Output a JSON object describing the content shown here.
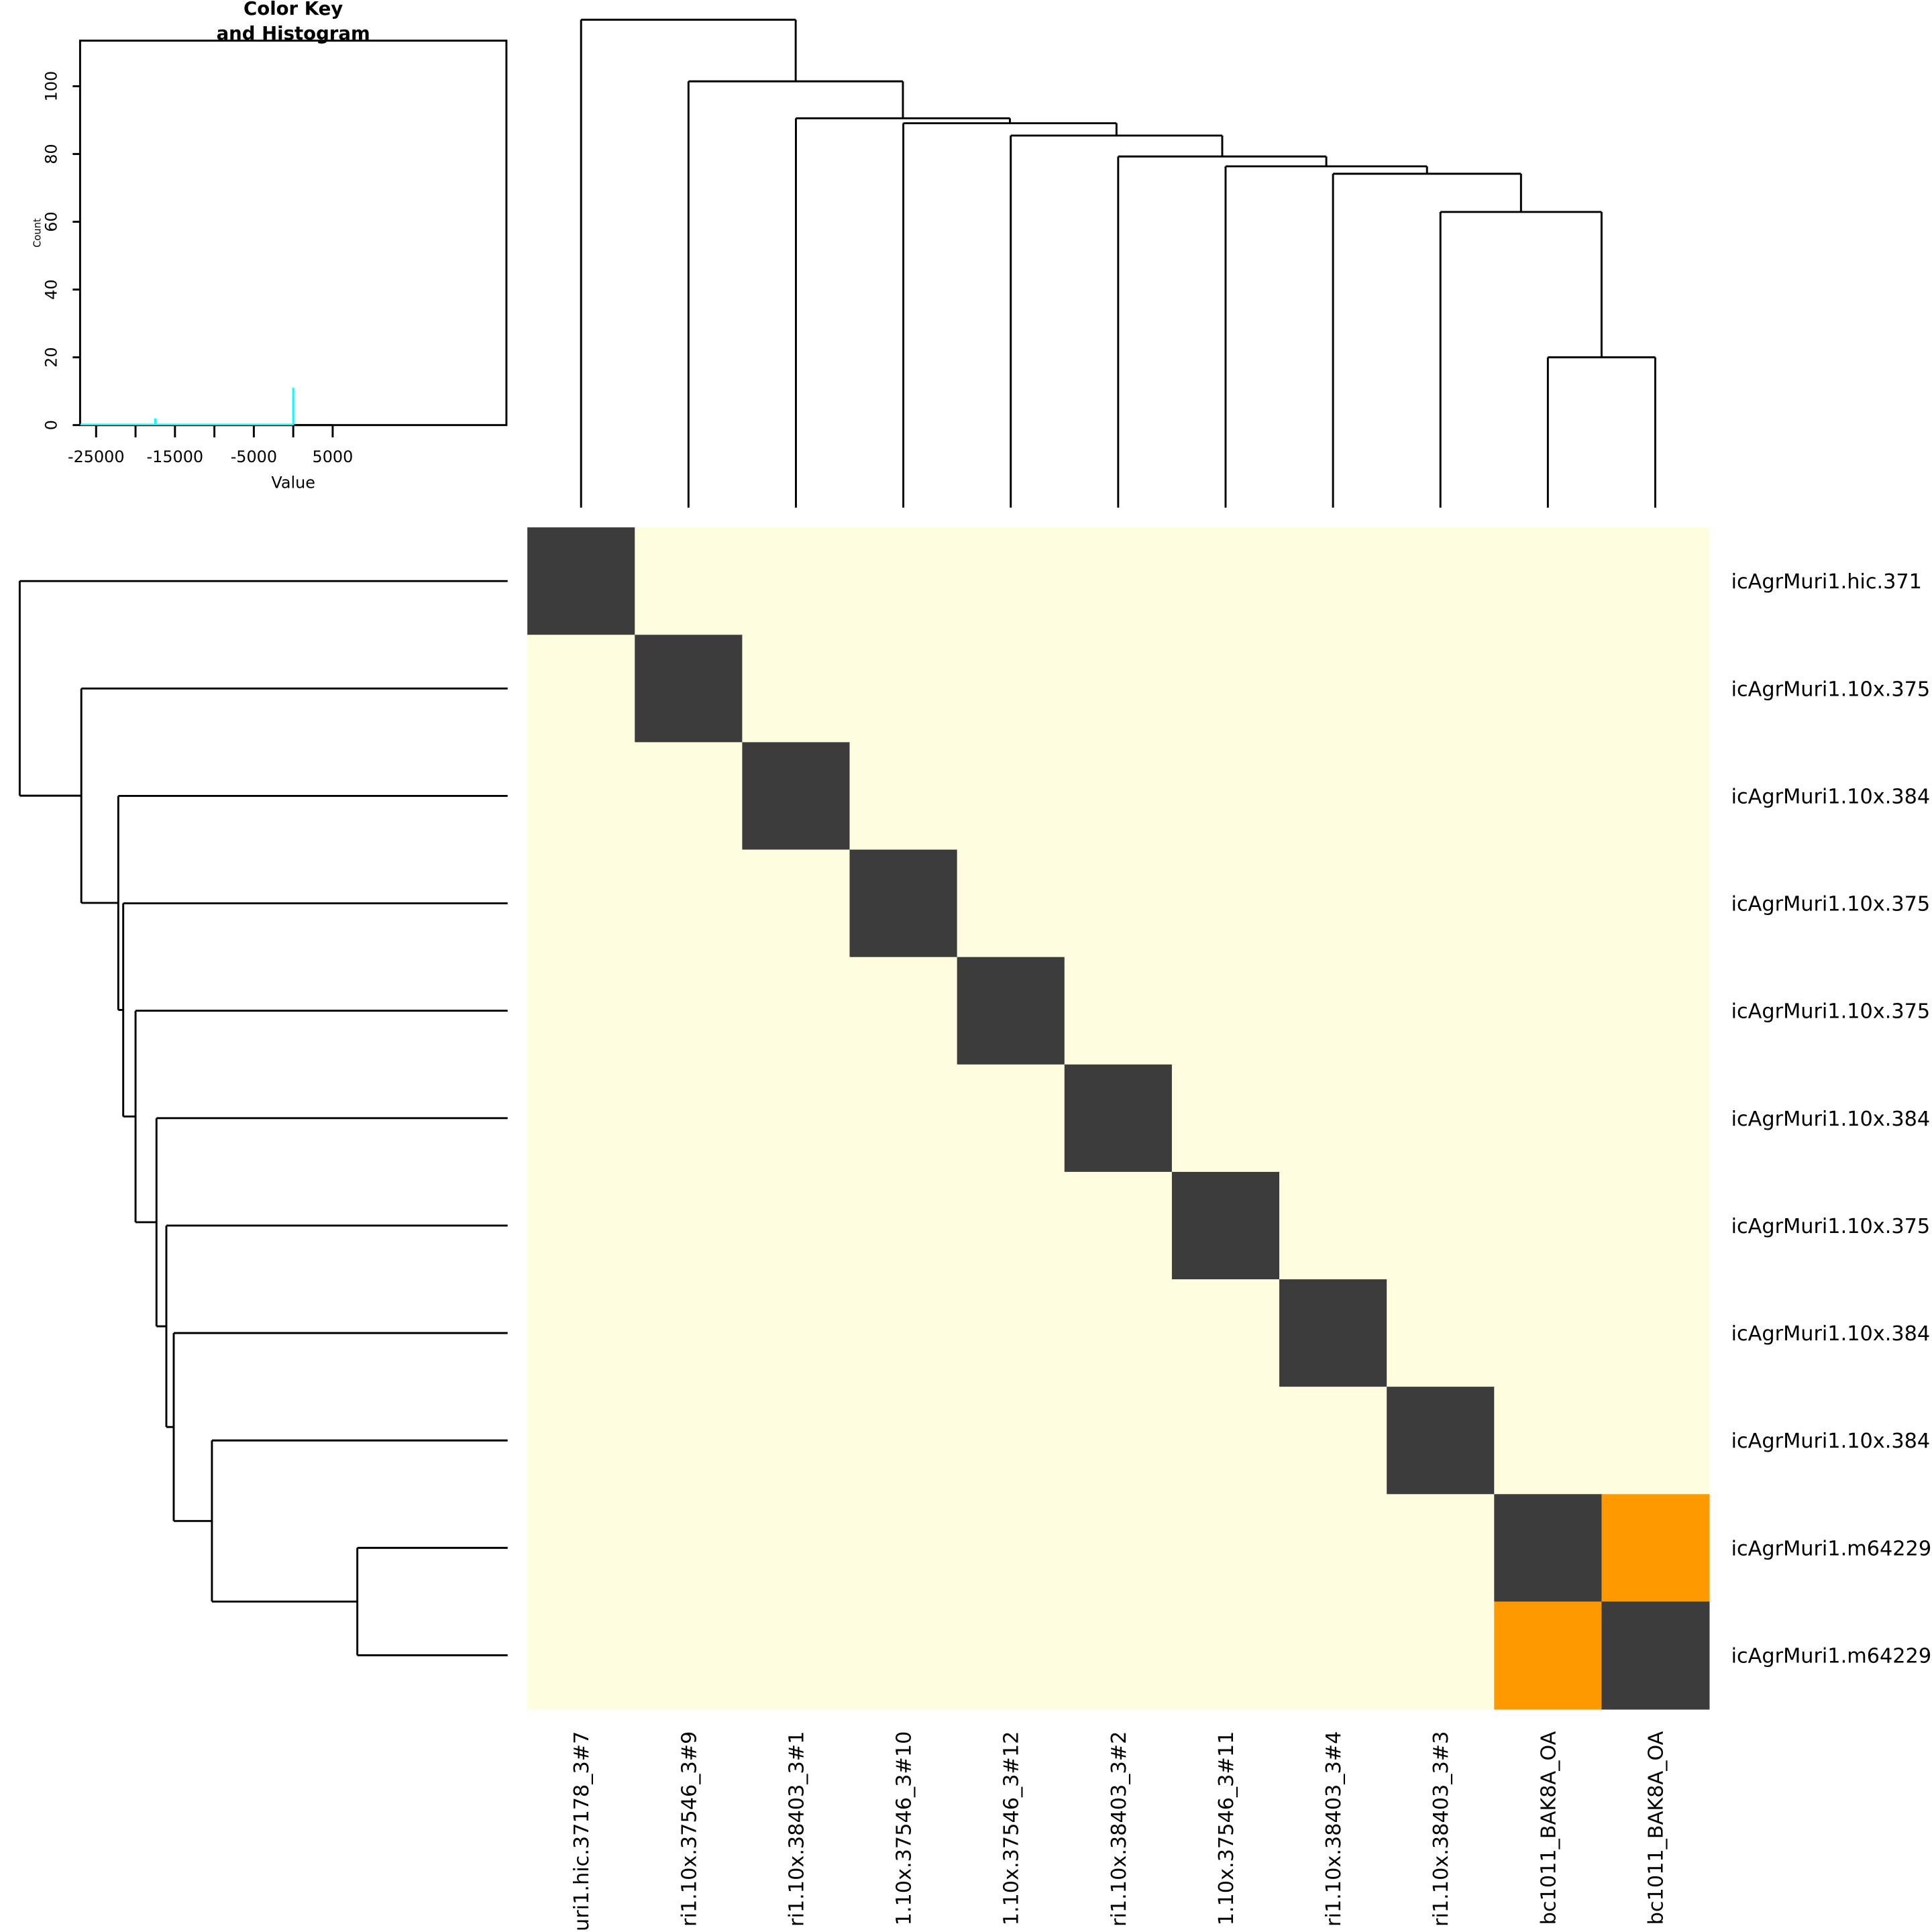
{
  "chart_data": [
    {
      "type": "heatmap",
      "row_labels": [
        "icAgrMuri1.hic.371",
        "icAgrMuri1.10x.375",
        "icAgrMuri1.10x.384",
        "icAgrMuri1.10x.375",
        "icAgrMuri1.10x.375",
        "icAgrMuri1.10x.384",
        "icAgrMuri1.10x.375",
        "icAgrMuri1.10x.384",
        "icAgrMuri1.10x.384",
        "icAgrMuri1.m64229",
        "icAgrMuri1.m64229"
      ],
      "col_labels": [
        "uri1.hic.37178_3#7",
        "ri1.10x.37546_3#9",
        "ri1.10x.38403_3#1",
        "1.10x.37546_3#10",
        "1.10x.37546_3#12",
        "ri1.10x.38403_3#2",
        "1.10x.37546_3#11",
        "ri1.10x.38403_3#4",
        "ri1.10x.38403_3#3",
        "bc1011_BAK8A_OA",
        "bc1011_BAK8A_OA"
      ],
      "cell_levels": [
        [
          2,
          0,
          0,
          0,
          0,
          0,
          0,
          0,
          0,
          0,
          0
        ],
        [
          0,
          2,
          0,
          0,
          0,
          0,
          0,
          0,
          0,
          0,
          0
        ],
        [
          0,
          0,
          2,
          0,
          0,
          0,
          0,
          0,
          0,
          0,
          0
        ],
        [
          0,
          0,
          0,
          2,
          0,
          0,
          0,
          0,
          0,
          0,
          0
        ],
        [
          0,
          0,
          0,
          0,
          2,
          0,
          0,
          0,
          0,
          0,
          0
        ],
        [
          0,
          0,
          0,
          0,
          0,
          2,
          0,
          0,
          0,
          0,
          0
        ],
        [
          0,
          0,
          0,
          0,
          0,
          0,
          2,
          0,
          0,
          0,
          0
        ],
        [
          0,
          0,
          0,
          0,
          0,
          0,
          0,
          2,
          0,
          0,
          0
        ],
        [
          0,
          0,
          0,
          0,
          0,
          0,
          0,
          0,
          2,
          0,
          0
        ],
        [
          0,
          0,
          0,
          0,
          0,
          0,
          0,
          0,
          0,
          2,
          1
        ],
        [
          0,
          0,
          0,
          0,
          0,
          0,
          0,
          0,
          0,
          1,
          2
        ]
      ],
      "level_colors": [
        "#fffde0",
        "#ff9900",
        "#3c3c3c"
      ],
      "dendrogram_merge_heights": [
        20,
        63,
        74,
        76,
        79,
        85,
        89,
        91,
        101,
        118
      ]
    },
    {
      "type": "bar",
      "title": "Color Key\nand Histogram",
      "title_lines": [
        "Color Key",
        "and Histogram"
      ],
      "xlabel": "Value",
      "ylabel": "Count",
      "xlim": [
        -27000,
        27000
      ],
      "ylim": [
        0,
        113
      ],
      "x_ticks": [
        -25000,
        -20000,
        -15000,
        -10000,
        -5000,
        0,
        5000
      ],
      "x_tick_labels": [
        "-25000",
        "",
        "-15000",
        "",
        "-5000",
        "",
        "5000"
      ],
      "y_ticks": [
        0,
        20,
        40,
        60,
        80,
        100
      ],
      "y_tick_labels": [
        "0",
        "20",
        "40",
        "60",
        "80",
        "100"
      ],
      "histogram": [
        {
          "x": -17500,
          "count": 2
        },
        {
          "x": 0,
          "count": 11
        }
      ],
      "line_color": "#00ffff"
    }
  ]
}
